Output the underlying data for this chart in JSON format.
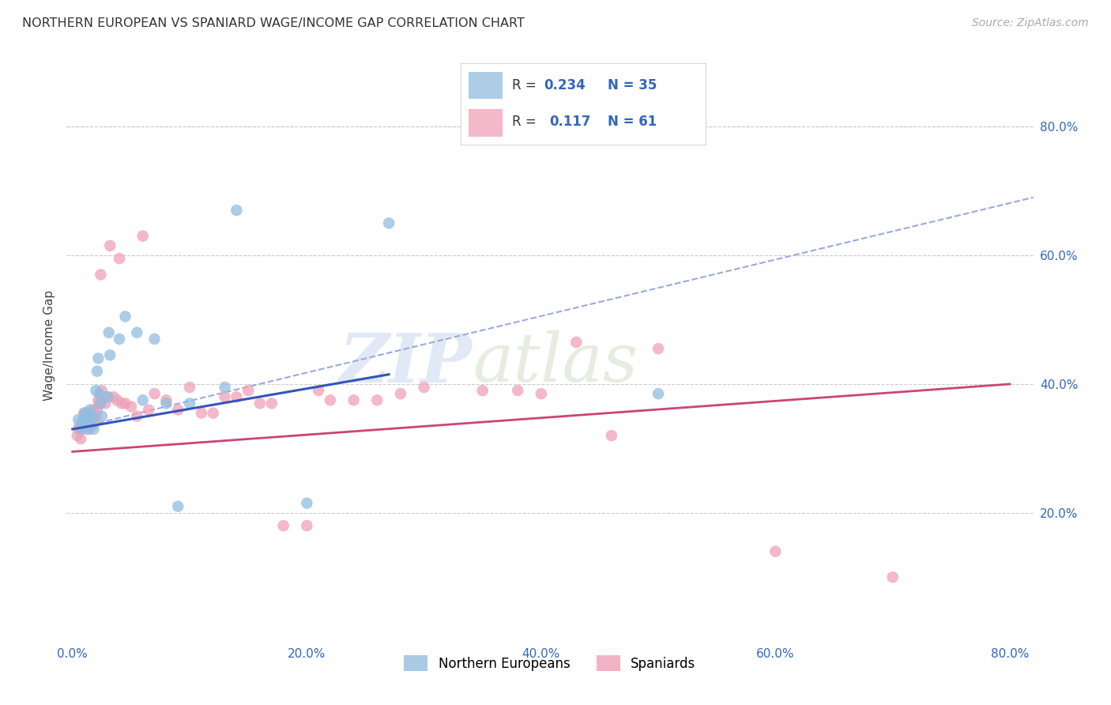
{
  "title": "NORTHERN EUROPEAN VS SPANIARD WAGE/INCOME GAP CORRELATION CHART",
  "source": "Source: ZipAtlas.com",
  "ylabel": "Wage/Income Gap",
  "watermark_zip": "ZIP",
  "watermark_atlas": "atlas",
  "legend_blue_R": "0.234",
  "legend_blue_N": "35",
  "legend_pink_R": "0.117",
  "legend_pink_N": "61",
  "blue_color": "#92BDE0",
  "pink_color": "#F0A0B8",
  "blue_line_color": "#3355BB",
  "pink_line_color": "#CC4477",
  "dashed_line_color": "#99AADD",
  "grid_color": "#CCCCCC",
  "x_ticks": [
    0.0,
    0.2,
    0.4,
    0.6,
    0.8
  ],
  "y_ticks": [
    0.2,
    0.4,
    0.6,
    0.8
  ],
  "xlim": [
    -0.005,
    0.82
  ],
  "ylim": [
    0.0,
    0.92
  ],
  "northern_europeans_x": [
    0.005,
    0.007,
    0.008,
    0.009,
    0.01,
    0.011,
    0.012,
    0.013,
    0.014,
    0.015,
    0.016,
    0.017,
    0.018,
    0.02,
    0.021,
    0.022,
    0.023,
    0.024,
    0.025,
    0.03,
    0.031,
    0.032,
    0.04,
    0.045,
    0.055,
    0.06,
    0.07,
    0.08,
    0.09,
    0.1,
    0.13,
    0.14,
    0.2,
    0.27,
    0.5
  ],
  "northern_europeans_y": [
    0.345,
    0.33,
    0.34,
    0.335,
    0.355,
    0.35,
    0.34,
    0.33,
    0.345,
    0.36,
    0.35,
    0.345,
    0.33,
    0.39,
    0.42,
    0.44,
    0.385,
    0.37,
    0.35,
    0.38,
    0.48,
    0.445,
    0.47,
    0.505,
    0.48,
    0.375,
    0.47,
    0.37,
    0.21,
    0.37,
    0.395,
    0.67,
    0.215,
    0.65,
    0.385
  ],
  "spaniards_x": [
    0.004,
    0.005,
    0.006,
    0.007,
    0.008,
    0.009,
    0.01,
    0.011,
    0.012,
    0.013,
    0.014,
    0.015,
    0.016,
    0.017,
    0.018,
    0.019,
    0.02,
    0.021,
    0.022,
    0.023,
    0.024,
    0.025,
    0.028,
    0.03,
    0.032,
    0.035,
    0.038,
    0.04,
    0.042,
    0.045,
    0.05,
    0.055,
    0.06,
    0.065,
    0.07,
    0.08,
    0.09,
    0.1,
    0.11,
    0.12,
    0.13,
    0.14,
    0.15,
    0.16,
    0.17,
    0.18,
    0.2,
    0.21,
    0.22,
    0.24,
    0.26,
    0.28,
    0.3,
    0.35,
    0.38,
    0.4,
    0.43,
    0.46,
    0.5,
    0.6,
    0.7
  ],
  "spaniards_y": [
    0.32,
    0.33,
    0.335,
    0.315,
    0.33,
    0.345,
    0.355,
    0.335,
    0.355,
    0.34,
    0.33,
    0.35,
    0.335,
    0.345,
    0.36,
    0.34,
    0.35,
    0.36,
    0.375,
    0.37,
    0.57,
    0.39,
    0.37,
    0.38,
    0.615,
    0.38,
    0.375,
    0.595,
    0.37,
    0.37,
    0.365,
    0.35,
    0.63,
    0.36,
    0.385,
    0.375,
    0.36,
    0.395,
    0.355,
    0.355,
    0.38,
    0.38,
    0.39,
    0.37,
    0.37,
    0.18,
    0.18,
    0.39,
    0.375,
    0.375,
    0.375,
    0.385,
    0.395,
    0.39,
    0.39,
    0.385,
    0.465,
    0.32,
    0.455,
    0.14,
    0.1
  ],
  "blue_line_x_start": 0.0,
  "blue_line_x_end": 0.27,
  "blue_line_y_start": 0.33,
  "blue_line_y_end": 0.415,
  "pink_line_x_start": 0.0,
  "pink_line_x_end": 0.8,
  "pink_line_y_start": 0.295,
  "pink_line_y_end": 0.4,
  "dashed_line_x_start": 0.0,
  "dashed_line_x_end": 0.82,
  "dashed_line_y_start": 0.33,
  "dashed_line_y_end": 0.69,
  "marker_size": 110
}
